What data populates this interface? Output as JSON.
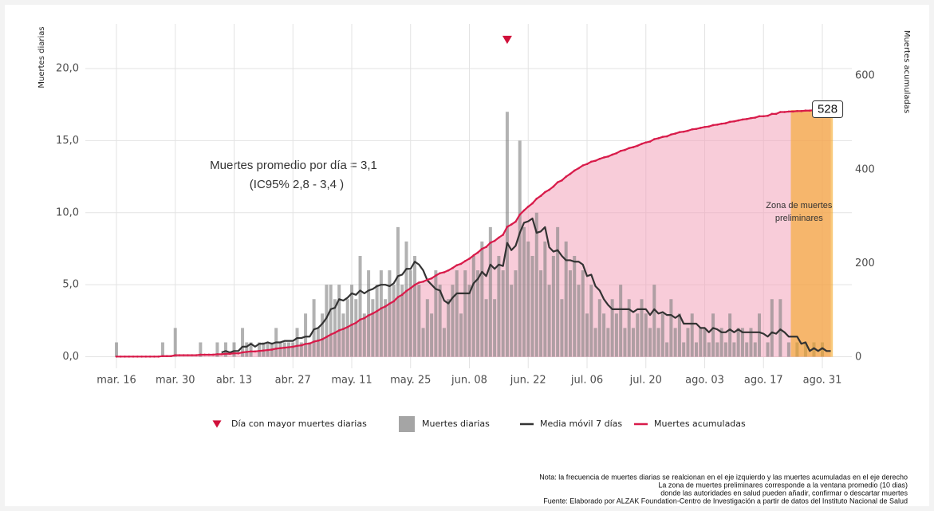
{
  "chart_data": {
    "type": "combo",
    "categories": [
      "mar. 16",
      null,
      null,
      null,
      null,
      null,
      null,
      null,
      null,
      null,
      null,
      null,
      null,
      null,
      "mar. 30",
      null,
      null,
      null,
      null,
      null,
      null,
      null,
      null,
      null,
      null,
      null,
      null,
      null,
      "abr. 13",
      null,
      null,
      null,
      null,
      null,
      null,
      null,
      null,
      null,
      null,
      null,
      null,
      null,
      "abr. 27",
      null,
      null,
      null,
      null,
      null,
      null,
      null,
      null,
      null,
      null,
      null,
      null,
      null,
      "may. 11",
      null,
      null,
      null,
      null,
      null,
      null,
      null,
      null,
      null,
      null,
      null,
      null,
      null,
      "may. 25",
      null,
      null,
      null,
      null,
      null,
      null,
      null,
      null,
      null,
      null,
      null,
      null,
      null,
      "jun. 08",
      null,
      null,
      null,
      null,
      null,
      null,
      null,
      null,
      null,
      null,
      null,
      null,
      null,
      "jun. 22",
      null,
      null,
      null,
      null,
      null,
      null,
      null,
      null,
      null,
      null,
      null,
      null,
      null,
      "jul. 06",
      null,
      null,
      null,
      null,
      null,
      null,
      null,
      null,
      null,
      null,
      null,
      null,
      null,
      "jul. 20",
      null,
      null,
      null,
      null,
      null,
      null,
      null,
      null,
      null,
      null,
      null,
      null,
      null,
      "ago. 03",
      null,
      null,
      null,
      null,
      null,
      null,
      null,
      null,
      null,
      null,
      null,
      null,
      null,
      "ago. 17",
      null,
      null,
      null,
      null,
      null,
      null,
      null,
      null,
      null,
      null,
      null,
      null,
      null,
      "ago. 31",
      null,
      null
    ],
    "series": [
      {
        "name": "Muertes diarias",
        "type": "bar",
        "color": "#7f7f7f",
        "values": [
          1,
          0,
          0,
          0,
          0,
          0,
          0,
          0,
          0,
          0,
          0,
          1,
          0,
          0,
          2,
          0,
          0,
          0,
          0,
          0,
          1,
          0,
          0,
          0,
          1,
          0,
          1,
          0,
          1,
          0,
          2,
          1,
          1,
          0,
          1,
          1,
          1,
          1,
          2,
          1,
          1,
          1,
          1,
          2,
          1,
          3,
          1,
          4,
          2,
          3,
          5,
          5,
          4,
          5,
          3,
          4,
          5,
          4,
          7,
          3,
          6,
          4,
          5,
          6,
          4,
          6,
          5,
          9,
          5,
          8,
          6,
          7,
          5,
          2,
          4,
          3,
          6,
          5,
          2,
          4,
          5,
          6,
          3,
          6,
          5,
          7,
          6,
          8,
          4,
          9,
          4,
          7,
          6,
          17,
          5,
          6,
          15,
          9,
          8,
          7,
          10,
          6,
          8,
          5,
          7,
          9,
          4,
          8,
          6,
          7,
          5,
          6,
          3,
          5,
          2,
          4,
          3,
          2,
          4,
          3,
          5,
          2,
          4,
          2,
          3,
          4,
          3,
          2,
          5,
          2,
          3,
          1,
          4,
          2,
          3,
          1,
          2,
          3,
          1,
          2,
          2,
          1,
          3,
          1,
          2,
          1,
          3,
          1,
          2,
          2,
          1,
          2,
          1,
          3,
          0,
          1,
          4,
          0,
          4,
          0,
          1,
          0,
          1,
          0,
          1,
          0,
          1,
          0,
          1,
          0,
          0
        ]
      },
      {
        "name": "Media móvil 7 días",
        "type": "line",
        "color": "#333333",
        "values": [
          null,
          null,
          null,
          null,
          null,
          null,
          null,
          null,
          null,
          null,
          null,
          null,
          null,
          null,
          null,
          null,
          null,
          null,
          null,
          null,
          null,
          null,
          null,
          null,
          null,
          0.3,
          0.4,
          0.3,
          0.4,
          0.4,
          0.7,
          0.7,
          0.9,
          0.7,
          0.9,
          0.9,
          1.0,
          0.9,
          1.0,
          1.0,
          1.1,
          1.1,
          1.1,
          1.3,
          1.3,
          1.4,
          1.4,
          1.9,
          2.0,
          2.3,
          2.7,
          3.3,
          3.4,
          4.0,
          3.9,
          4.1,
          4.4,
          4.3,
          4.6,
          4.4,
          4.6,
          4.7,
          4.9,
          5.0,
          5.0,
          4.9,
          5.1,
          5.6,
          5.7,
          6.1,
          6.1,
          6.6,
          6.4,
          6.0,
          5.3,
          5.0,
          4.7,
          4.6,
          3.9,
          3.7,
          4.1,
          4.4,
          4.4,
          4.4,
          4.4,
          5.1,
          5.4,
          5.9,
          5.6,
          6.4,
          6.1,
          6.4,
          6.3,
          7.9,
          7.4,
          7.7,
          8.6,
          9.3,
          9.4,
          9.6,
          8.6,
          8.7,
          9.0,
          7.6,
          7.3,
          7.4,
          7.0,
          6.7,
          6.7,
          6.6,
          6.6,
          6.4,
          5.6,
          5.7,
          4.9,
          4.6,
          4.0,
          3.6,
          3.3,
          3.3,
          3.3,
          3.3,
          3.3,
          3.1,
          3.3,
          3.3,
          3.3,
          2.9,
          3.3,
          3.0,
          3.1,
          2.9,
          2.9,
          2.7,
          2.9,
          2.3,
          2.3,
          2.3,
          2.3,
          2.0,
          2.0,
          1.7,
          2.0,
          1.9,
          1.7,
          1.7,
          1.9,
          1.7,
          1.9,
          1.7,
          1.7,
          1.7,
          1.7,
          1.7,
          1.6,
          1.4,
          1.7,
          1.6,
          1.9,
          1.7,
          1.4,
          1.4,
          1.4,
          0.9,
          1.0,
          0.4,
          0.6,
          0.4,
          0.6,
          0.4,
          0.4
        ]
      },
      {
        "name": "Muertes acumuladas",
        "type": "area",
        "axis": "y2",
        "color": "#d81b4a",
        "fill": "#f2a3ba",
        "values": [
          1,
          1,
          1,
          1,
          1,
          1,
          1,
          1,
          1,
          1,
          1,
          2,
          2,
          2,
          4,
          4,
          4,
          4,
          4,
          4,
          5,
          5,
          5,
          5,
          6,
          6,
          7,
          7,
          8,
          8,
          10,
          11,
          12,
          12,
          13,
          14,
          15,
          16,
          18,
          19,
          20,
          21,
          22,
          24,
          25,
          28,
          29,
          33,
          35,
          38,
          43,
          48,
          52,
          57,
          60,
          64,
          69,
          73,
          80,
          83,
          89,
          93,
          98,
          104,
          108,
          114,
          119,
          128,
          133,
          141,
          147,
          154,
          159,
          161,
          165,
          168,
          174,
          179,
          181,
          185,
          190,
          196,
          199,
          205,
          210,
          217,
          223,
          231,
          235,
          244,
          248,
          255,
          261,
          278,
          283,
          289,
          304,
          313,
          321,
          328,
          338,
          344,
          352,
          357,
          364,
          373,
          377,
          385,
          391,
          398,
          403,
          409,
          412,
          417,
          419,
          423,
          426,
          428,
          432,
          435,
          440,
          442,
          446,
          448,
          451,
          455,
          458,
          460,
          465,
          467,
          470,
          471,
          475,
          477,
          480,
          481,
          483,
          486,
          487,
          489,
          491,
          492,
          495,
          496,
          498,
          499,
          502,
          503,
          505,
          507,
          508,
          510,
          511,
          514,
          514,
          515,
          519,
          519,
          523,
          523,
          524,
          524,
          525,
          525,
          526,
          526,
          527,
          527,
          528,
          528,
          528
        ]
      }
    ],
    "peak_marker": {
      "name": "Día con mayor muertes diarias",
      "color": "#d0103a"
    },
    "ylim": [
      -0.8,
      23.1
    ],
    "yticks": [
      {
        "value": 0,
        "label": "0,0"
      },
      {
        "value": 5,
        "label": "5,0"
      },
      {
        "value": 10,
        "label": "10,0"
      },
      {
        "value": 15,
        "label": "15,0"
      },
      {
        "value": 20,
        "label": "20,0"
      }
    ],
    "y2lim": [
      -24,
      711
    ],
    "y2ticks": [
      0,
      200,
      400,
      600
    ],
    "ylabel": "Muertes diarias",
    "y2label": "Muertes acumuladas",
    "grid": true,
    "legend": "bottom",
    "annotation": [
      "Muertes promedio por día = 3,1",
      "(IC95% 2,8 - 3,4 )"
    ],
    "zone": {
      "text": [
        "Zona de muertes",
        "preliminares"
      ],
      "days": 10,
      "color": "#f5a623"
    },
    "notes": [
      "Nota: la frecuencia de muertes diarias se realcionan en el eje izquierdo y las muertes acumuladas en el eje derecho",
      "La zona de muertes preliminares corresponde a la ventana promedio (10 dias)",
      "donde las autoridades en salud pueden añadir, confirmar o descartar muertes",
      "Fuente: Elaborado por ALZAK Foundation-Centro de Investigación a partir de datos del Instituto Nacional de Salud"
    ]
  }
}
